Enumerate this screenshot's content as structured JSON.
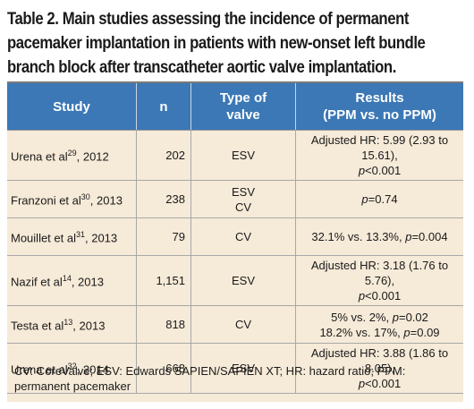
{
  "caption": "Table 2. Main studies assessing the incidence of permanent pacemaker implantation in patients with new-onset left bundle branch block after transcatheter aortic valve implantation.",
  "headers": {
    "study": "Study",
    "n": "n",
    "type_line1": "Type of",
    "type_line2": "valve",
    "results_line1": "Results",
    "results_line2": "(PPM vs. no PPM)"
  },
  "rows": [
    {
      "study": "Urena et al",
      "ref": "29",
      "year": ", 2012",
      "n": "202",
      "type": [
        "ESV"
      ],
      "results": [
        [
          "Adjusted HR: 5.99 (2.93 to 15.61),"
        ],
        [
          "",
          "p",
          "<0.001"
        ]
      ]
    },
    {
      "study": "Franzoni et al",
      "ref": "30",
      "year": ", 2013",
      "n": "238",
      "type": [
        "ESV",
        "CV"
      ],
      "results": [
        [
          "",
          "p",
          "=0.74"
        ]
      ]
    },
    {
      "study": "Mouillet et al",
      "ref": "31",
      "year": ", 2013",
      "n": "79",
      "type": [
        "CV"
      ],
      "results": [
        [
          "32.1% vs. 13.3%, ",
          "p",
          "=0.004"
        ]
      ]
    },
    {
      "study": "Nazif et al",
      "ref": "14",
      "year": ", 2013",
      "n": "1,151",
      "type": [
        "ESV"
      ],
      "results": [
        [
          "Adjusted HR: 3.18 (1.76 to 5.76),"
        ],
        [
          "",
          "p",
          "<0.001"
        ]
      ]
    },
    {
      "study": "Testa et al",
      "ref": "13",
      "year": ", 2013",
      "n": "818",
      "type": [
        "CV"
      ],
      "results": [
        [
          "5% vs. 2%, ",
          "p",
          "=0.02"
        ],
        [
          "18.2% vs. 17%, ",
          "p",
          "=0.09"
        ]
      ]
    },
    {
      "study": "Urena et al",
      "ref": "32",
      "year": ", 2014",
      "n": "668",
      "type": [
        "ESV"
      ],
      "results": [
        [
          "Adjusted HR: 3.88 (1.86 to 8.05),"
        ],
        [
          "",
          "p",
          "<0.001"
        ]
      ]
    }
  ],
  "footnote": "CV: CoreValve; ESV: Edwards SAPIEN/SAPIEN XT; HR: hazard ratio; PPM: permanent pacemaker"
}
